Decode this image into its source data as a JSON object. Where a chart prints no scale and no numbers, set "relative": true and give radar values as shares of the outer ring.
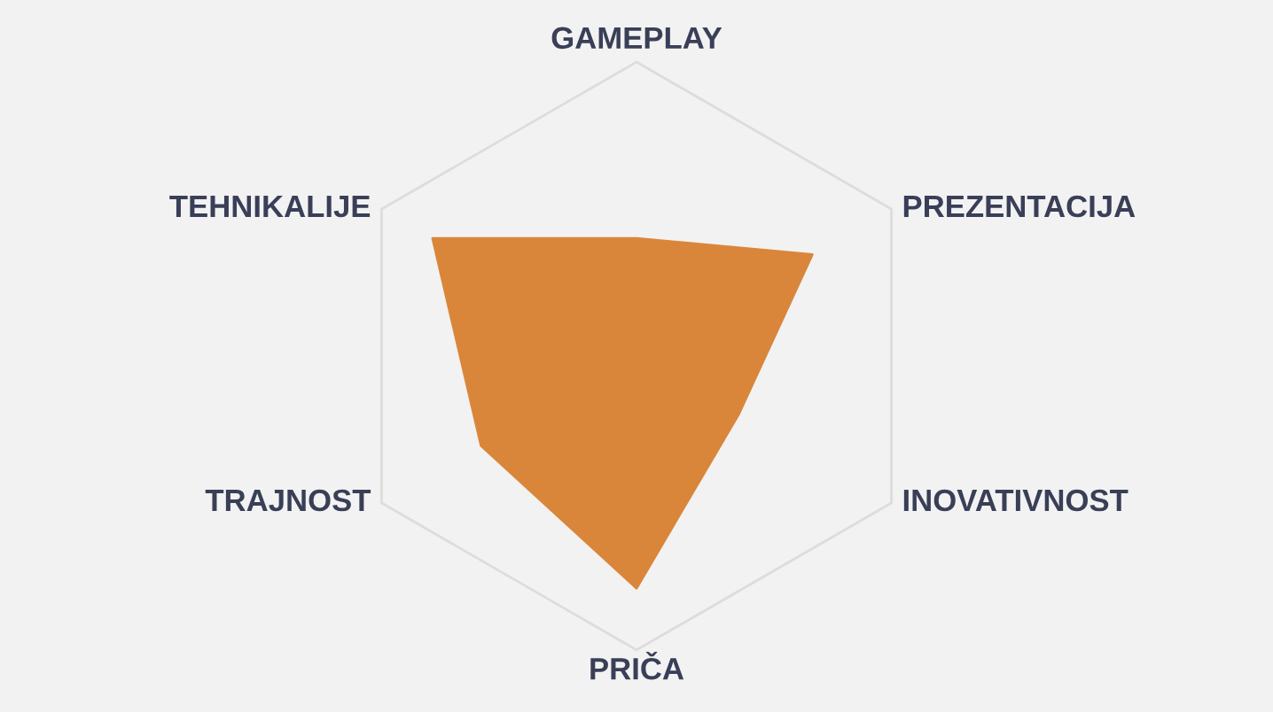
{
  "chart_data": {
    "type": "radar",
    "relative": true,
    "categories": [
      "GAMEPLAY",
      "PREZENTACIJA",
      "INOVATIVNOST",
      "PRIČA",
      "TRAJNOST",
      "TEHNIKALIJE"
    ],
    "series": [
      {
        "color": "#d9863b",
        "values": [
          0.4,
          0.69,
          0.4,
          0.79,
          0.61,
          0.8
        ]
      }
    ],
    "grid": true
  }
}
